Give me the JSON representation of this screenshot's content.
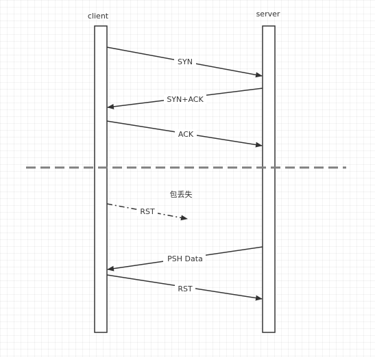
{
  "colors": {
    "line": "#333333",
    "separator": "#808080",
    "lifeline_fill": "#ffffff"
  },
  "actors": {
    "client": "client",
    "server": "server"
  },
  "messages": {
    "syn": "SYN",
    "syn_ack": "SYN+ACK",
    "ack": "ACK",
    "rst_lost": "RST",
    "psh_data": "PSH Data",
    "rst_final": "RST"
  },
  "annotations": {
    "packet_lost": "包丢失"
  }
}
